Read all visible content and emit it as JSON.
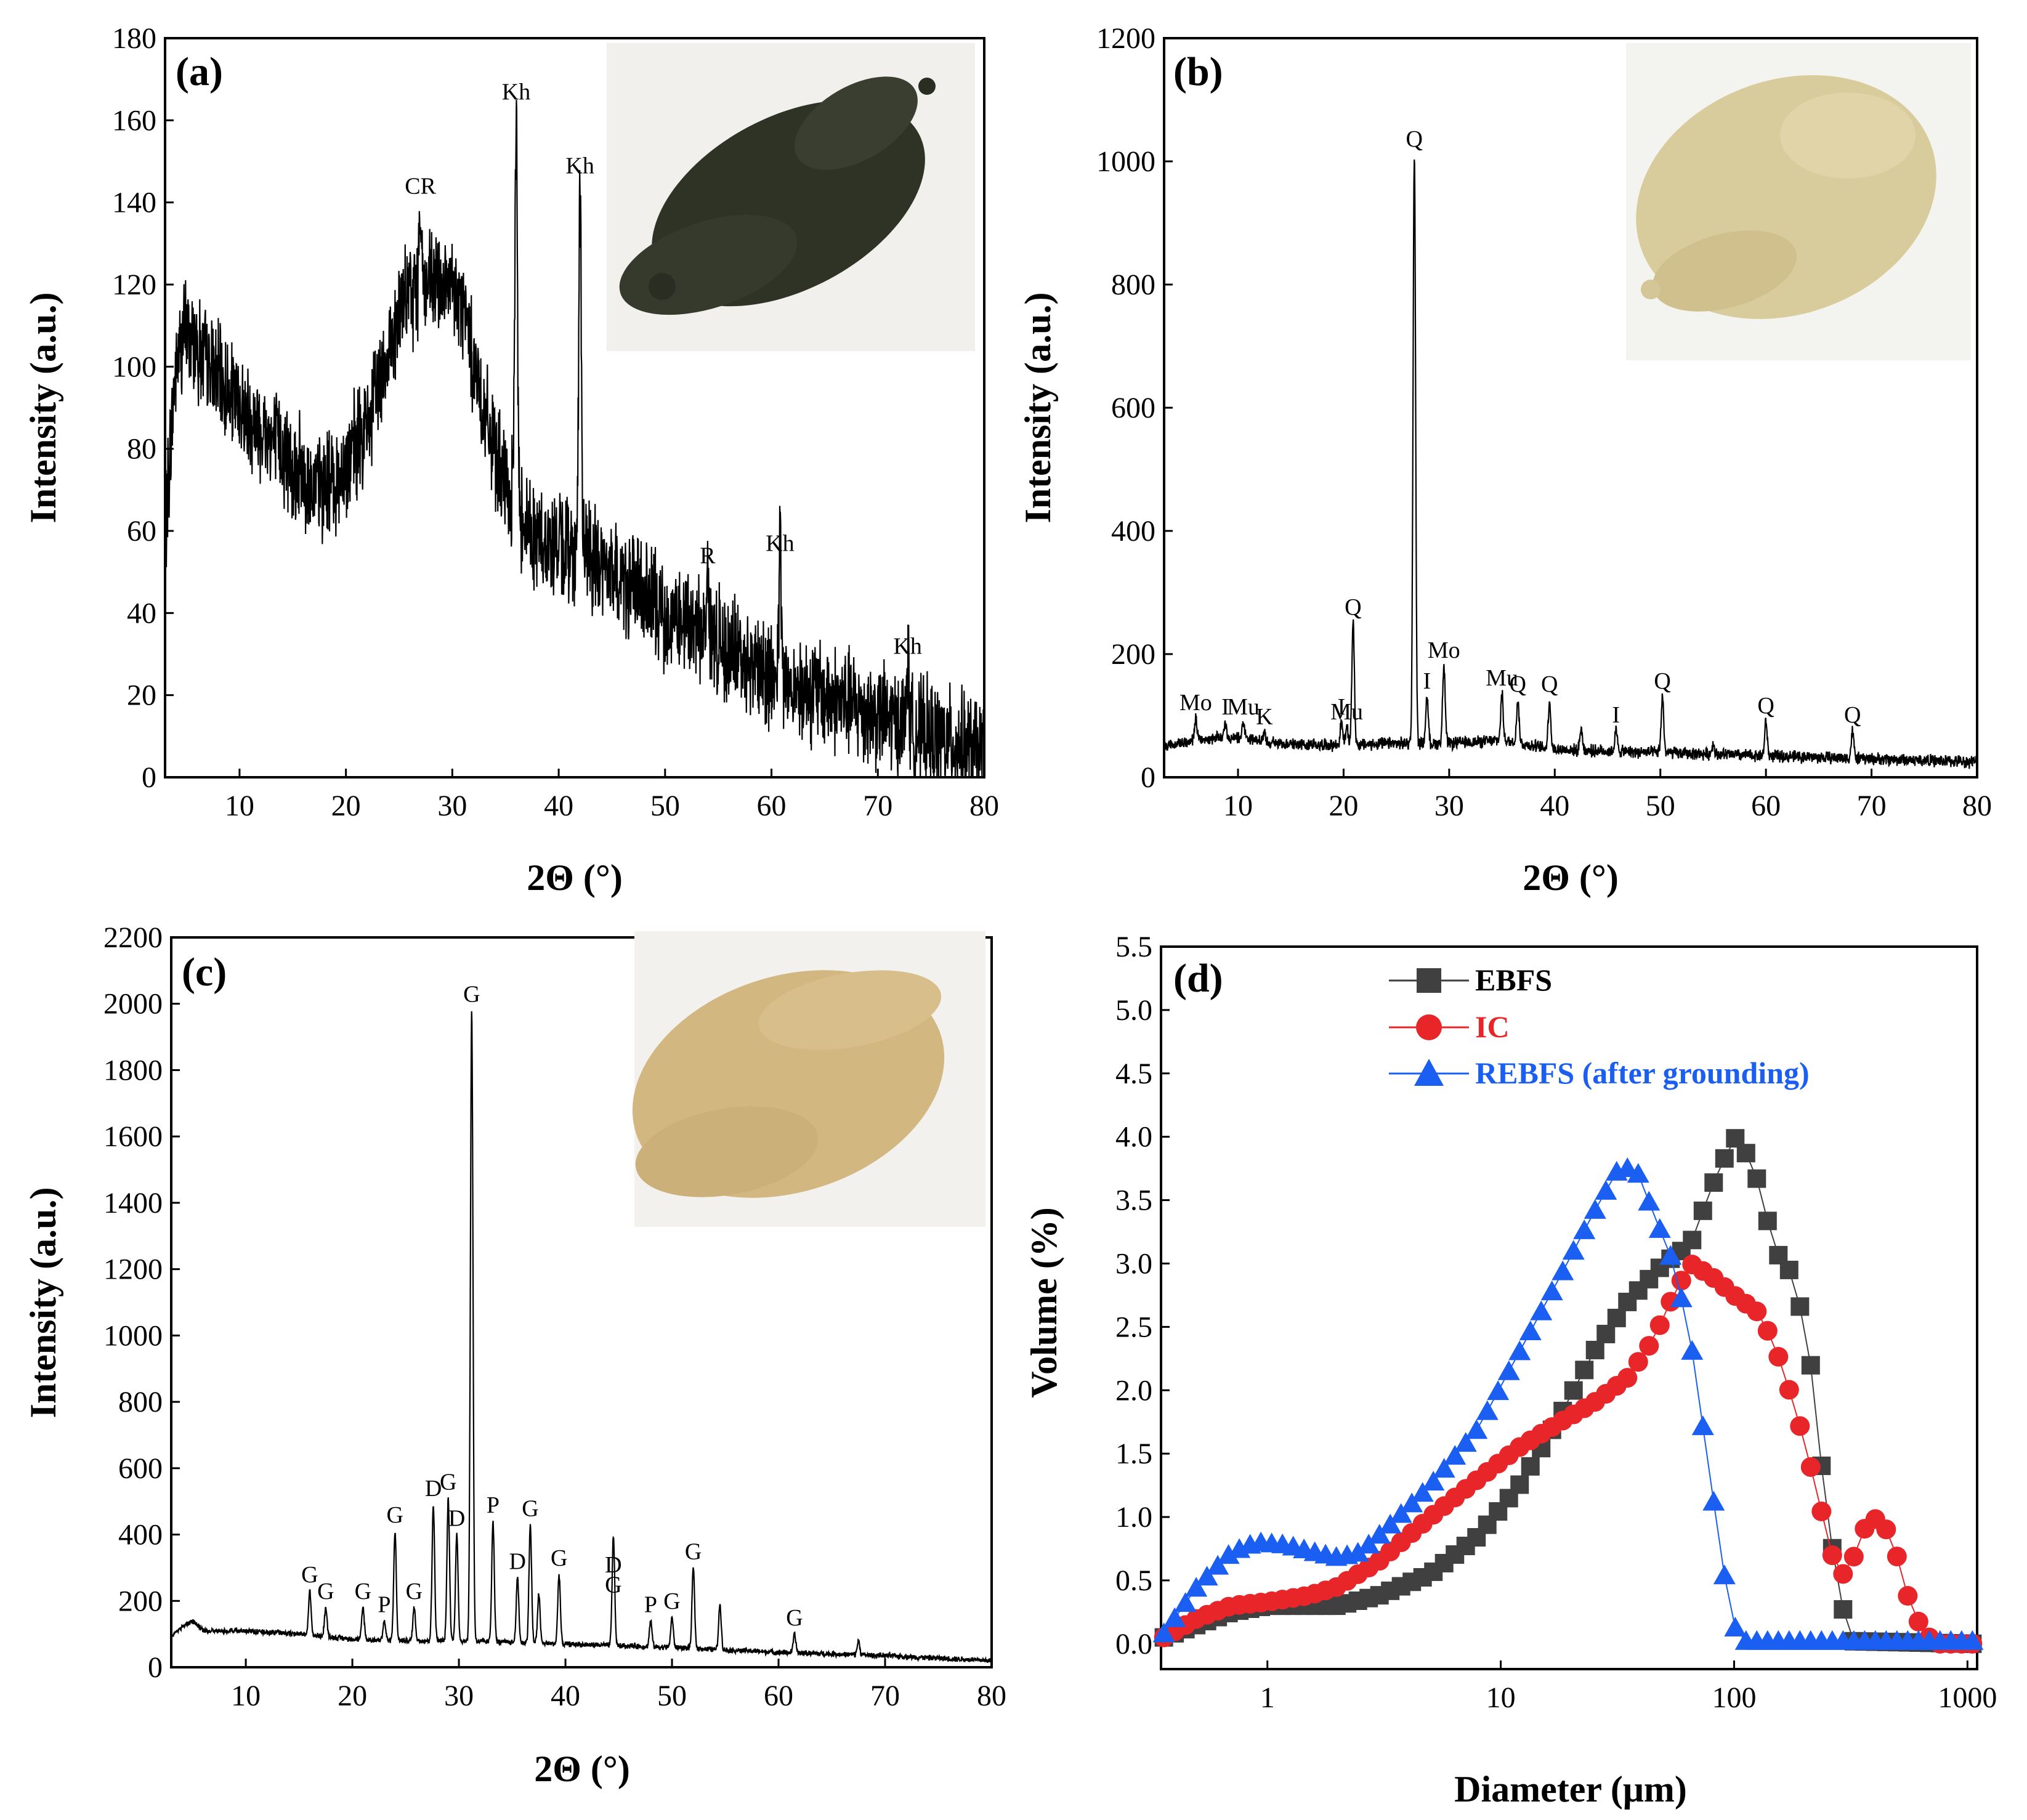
{
  "figure_domain": "Chart",
  "colors": {
    "ebfs": "#404040",
    "ic": "#e8262a",
    "rebfs": "#1a5ff2",
    "xrd_line": "#000000",
    "photo_a": "#2f3326",
    "photo_b": "#d9cc9c",
    "photo_c": "#d2b781"
  },
  "chart_data": [
    {
      "id": "a",
      "type": "line",
      "panel_label": "(a)",
      "xlabel": "2Θ (°)",
      "ylabel": "Intensity (a.u.)",
      "xlim": [
        3,
        80
      ],
      "ylim": [
        0,
        180
      ],
      "xticks": [
        10,
        20,
        30,
        40,
        50,
        60,
        70,
        80
      ],
      "yticks": [
        0,
        20,
        40,
        60,
        80,
        100,
        120,
        140,
        160,
        180
      ],
      "inset_photo": "dark-powder-photo",
      "background": [
        [
          3,
          60
        ],
        [
          4,
          100
        ],
        [
          5,
          110
        ],
        [
          7,
          100
        ],
        [
          10,
          90
        ],
        [
          14,
          80
        ],
        [
          17,
          70
        ],
        [
          19,
          72
        ],
        [
          22,
          85
        ],
        [
          24,
          105
        ],
        [
          26,
          118
        ],
        [
          29,
          120
        ],
        [
          31,
          115
        ],
        [
          33,
          88
        ],
        [
          35,
          70
        ],
        [
          38,
          58
        ],
        [
          42,
          55
        ],
        [
          46,
          48
        ],
        [
          50,
          40
        ],
        [
          55,
          33
        ],
        [
          60,
          25
        ],
        [
          65,
          20
        ],
        [
          70,
          15
        ],
        [
          75,
          10
        ],
        [
          80,
          6
        ]
      ],
      "noise_amplitude": 16,
      "peaks": [
        {
          "x": 36.0,
          "y": 163,
          "label": "Kh"
        },
        {
          "x": 42.0,
          "y": 145,
          "label": "Kh"
        },
        {
          "x": 60.8,
          "y": 53,
          "label": "Kh"
        },
        {
          "x": 72.8,
          "y": 28,
          "label": "Kh"
        },
        {
          "x": 54.0,
          "y": 50,
          "label": "R"
        },
        {
          "x": 27.0,
          "y": 140,
          "label": "CR"
        }
      ]
    },
    {
      "id": "b",
      "type": "line",
      "panel_label": "(b)",
      "xlabel": "2Θ (°)",
      "ylabel": "Intensity (a.u.)",
      "xlim": [
        3,
        80
      ],
      "ylim": [
        0,
        1200
      ],
      "xticks": [
        10,
        20,
        30,
        40,
        50,
        60,
        70,
        80
      ],
      "yticks": [
        0,
        200,
        400,
        600,
        800,
        1000,
        1200
      ],
      "inset_photo": "beige-powder-photo",
      "background": [
        [
          3,
          50
        ],
        [
          6,
          60
        ],
        [
          9,
          65
        ],
        [
          14,
          55
        ],
        [
          20,
          52
        ],
        [
          25,
          55
        ],
        [
          30,
          55
        ],
        [
          35,
          60
        ],
        [
          40,
          45
        ],
        [
          50,
          40
        ],
        [
          60,
          35
        ],
        [
          70,
          30
        ],
        [
          80,
          25
        ]
      ],
      "noise_amplitude": 12,
      "peaks": [
        {
          "x": 6.0,
          "y": 95,
          "label": "Mo"
        },
        {
          "x": 8.8,
          "y": 88,
          "label": "I"
        },
        {
          "x": 10.5,
          "y": 88,
          "label": "Mu"
        },
        {
          "x": 12.5,
          "y": 72,
          "label": "K"
        },
        {
          "x": 19.8,
          "y": 88,
          "label": "I"
        },
        {
          "x": 20.3,
          "y": 80,
          "label": "Mu"
        },
        {
          "x": 20.9,
          "y": 250,
          "label": "Q"
        },
        {
          "x": 26.7,
          "y": 1010,
          "label": "Q"
        },
        {
          "x": 27.9,
          "y": 130,
          "label": "I"
        },
        {
          "x": 29.5,
          "y": 180,
          "label": "Mo"
        },
        {
          "x": 35.0,
          "y": 135,
          "label": "Mu"
        },
        {
          "x": 36.5,
          "y": 125,
          "label": "Q"
        },
        {
          "x": 39.5,
          "y": 125,
          "label": "Q"
        },
        {
          "x": 42.5,
          "y": 80,
          "label": ""
        },
        {
          "x": 45.8,
          "y": 75,
          "label": "I"
        },
        {
          "x": 50.2,
          "y": 130,
          "label": "Q"
        },
        {
          "x": 55.0,
          "y": 55,
          "label": ""
        },
        {
          "x": 60.0,
          "y": 90,
          "label": "Q"
        },
        {
          "x": 68.2,
          "y": 75,
          "label": "Q"
        }
      ]
    },
    {
      "id": "c",
      "type": "line",
      "panel_label": "(c)",
      "xlabel": "2Θ (°)",
      "ylabel": "Intensity (a.u.)",
      "xlim": [
        3,
        80
      ],
      "ylim": [
        0,
        2200
      ],
      "xticks": [
        10,
        20,
        30,
        40,
        50,
        60,
        70,
        80
      ],
      "yticks": [
        0,
        200,
        400,
        600,
        800,
        1000,
        1200,
        1400,
        1600,
        1800,
        2000,
        2200
      ],
      "inset_photo": "tan-powder-photo",
      "background": [
        [
          3,
          95
        ],
        [
          4,
          120
        ],
        [
          5,
          140
        ],
        [
          6,
          110
        ],
        [
          10,
          110
        ],
        [
          15,
          100
        ],
        [
          20,
          85
        ],
        [
          25,
          80
        ],
        [
          30,
          80
        ],
        [
          40,
          70
        ],
        [
          50,
          60
        ],
        [
          60,
          45
        ],
        [
          70,
          35
        ],
        [
          80,
          20
        ]
      ],
      "noise_amplitude": 10,
      "peaks": [
        {
          "x": 16.0,
          "y": 230,
          "label": "G"
        },
        {
          "x": 17.5,
          "y": 180,
          "label": "G"
        },
        {
          "x": 21.0,
          "y": 180,
          "label": "G"
        },
        {
          "x": 23.0,
          "y": 140,
          "label": "P"
        },
        {
          "x": 24.0,
          "y": 410,
          "label": "G"
        },
        {
          "x": 25.8,
          "y": 180,
          "label": "G"
        },
        {
          "x": 27.6,
          "y": 490,
          "label": "D"
        },
        {
          "x": 29.0,
          "y": 510,
          "label": "G"
        },
        {
          "x": 29.8,
          "y": 400,
          "label": "D"
        },
        {
          "x": 31.2,
          "y": 1980,
          "label": "G"
        },
        {
          "x": 33.2,
          "y": 440,
          "label": "P"
        },
        {
          "x": 35.5,
          "y": 270,
          "label": "D"
        },
        {
          "x": 36.7,
          "y": 430,
          "label": "G"
        },
        {
          "x": 37.5,
          "y": 220,
          "label": ""
        },
        {
          "x": 39.4,
          "y": 280,
          "label": "G"
        },
        {
          "x": 44.5,
          "y": 260,
          "label": "D"
        },
        {
          "x": 44.5,
          "y": 200,
          "label": "G"
        },
        {
          "x": 48.0,
          "y": 140,
          "label": "P"
        },
        {
          "x": 50.0,
          "y": 150,
          "label": "G"
        },
        {
          "x": 52.0,
          "y": 300,
          "label": "G"
        },
        {
          "x": 54.5,
          "y": 190,
          "label": ""
        },
        {
          "x": 61.5,
          "y": 100,
          "label": "G"
        },
        {
          "x": 67.5,
          "y": 80,
          "label": ""
        }
      ]
    },
    {
      "id": "d",
      "type": "line",
      "panel_label": "(d)",
      "xlabel": "Diameter (μm)",
      "ylabel": "Volume (%)",
      "xscale": "log",
      "xlim": [
        0.35,
        1100
      ],
      "ylim": [
        -0.2,
        5.5
      ],
      "xticks": [
        1,
        10,
        100,
        1000
      ],
      "yticks": [
        0.0,
        0.5,
        1.0,
        1.5,
        2.0,
        2.5,
        3.0,
        3.5,
        4.0,
        4.5,
        5.0,
        5.5
      ],
      "legend_position": "top-left",
      "series": [
        {
          "name": "EBFS",
          "marker": "square",
          "color_key": "ebfs",
          "points": [
            [
              0.36,
              0.05
            ],
            [
              0.5,
              0.15
            ],
            [
              0.7,
              0.25
            ],
            [
              1,
              0.3
            ],
            [
              1.5,
              0.3
            ],
            [
              2,
              0.3
            ],
            [
              3,
              0.38
            ],
            [
              5,
              0.55
            ],
            [
              8,
              0.85
            ],
            [
              12,
              1.25
            ],
            [
              18,
              1.8
            ],
            [
              25,
              2.3
            ],
            [
              35,
              2.7
            ],
            [
              50,
              3.0
            ],
            [
              65,
              3.15
            ],
            [
              80,
              3.6
            ],
            [
              100,
              4.0
            ],
            [
              120,
              3.8
            ],
            [
              150,
              3.1
            ],
            [
              180,
              2.9
            ],
            [
              210,
              2.3
            ],
            [
              250,
              1.0
            ],
            [
              290,
              0.3
            ],
            [
              320,
              0.02
            ],
            [
              1050,
              0.0
            ]
          ]
        },
        {
          "name": "IC",
          "marker": "circle",
          "color_key": "ic",
          "points": [
            [
              0.36,
              0.05
            ],
            [
              0.5,
              0.2
            ],
            [
              0.7,
              0.3
            ],
            [
              1,
              0.33
            ],
            [
              1.5,
              0.38
            ],
            [
              2,
              0.45
            ],
            [
              3,
              0.65
            ],
            [
              5,
              1.0
            ],
            [
              8,
              1.3
            ],
            [
              12,
              1.55
            ],
            [
              18,
              1.75
            ],
            [
              25,
              1.9
            ],
            [
              35,
              2.1
            ],
            [
              45,
              2.4
            ],
            [
              55,
              2.75
            ],
            [
              65,
              3.0
            ],
            [
              80,
              2.9
            ],
            [
              100,
              2.75
            ],
            [
              130,
              2.6
            ],
            [
              160,
              2.2
            ],
            [
              200,
              1.6
            ],
            [
              240,
              1.0
            ],
            [
              280,
              0.5
            ],
            [
              320,
              0.65
            ],
            [
              370,
              0.95
            ],
            [
              420,
              1.0
            ],
            [
              480,
              0.8
            ],
            [
              560,
              0.35
            ],
            [
              650,
              0.08
            ],
            [
              750,
              0.0
            ],
            [
              1050,
              0.0
            ]
          ]
        },
        {
          "name": "REBFS (after grounding)",
          "marker": "triangle",
          "color_key": "rebfs",
          "points": [
            [
              0.36,
              0.08
            ],
            [
              0.5,
              0.45
            ],
            [
              0.7,
              0.72
            ],
            [
              0.9,
              0.8
            ],
            [
              1.2,
              0.78
            ],
            [
              1.6,
              0.72
            ],
            [
              2,
              0.68
            ],
            [
              2.5,
              0.72
            ],
            [
              3.2,
              0.9
            ],
            [
              5,
              1.25
            ],
            [
              8,
              1.7
            ],
            [
              12,
              2.3
            ],
            [
              18,
              2.9
            ],
            [
              25,
              3.4
            ],
            [
              32,
              3.75
            ],
            [
              38,
              3.75
            ],
            [
              45,
              3.4
            ],
            [
              55,
              3.0
            ],
            [
              65,
              2.4
            ],
            [
              75,
              1.6
            ],
            [
              85,
              0.9
            ],
            [
              95,
              0.3
            ],
            [
              105,
              0.02
            ],
            [
              1050,
              0.02
            ]
          ]
        }
      ]
    }
  ]
}
